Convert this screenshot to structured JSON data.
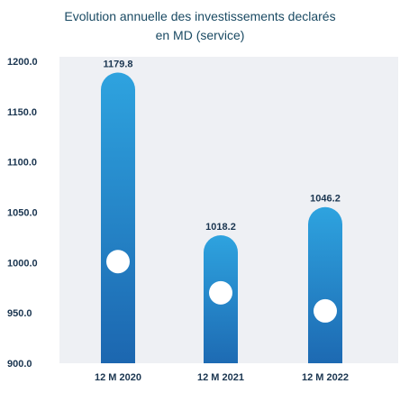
{
  "chart_data": {
    "type": "bar",
    "title_line1": "Evolution annuelle des investissements declarés",
    "title_line2": "en MD (service)",
    "categories": [
      "12 M 2020",
      "12 M 2021",
      "12 M 2022"
    ],
    "values": [
      1179.8,
      1018.2,
      1046.2
    ],
    "data_labels": [
      "1179.8",
      "1018.2",
      "1046.2"
    ],
    "yticks": [
      "1200.0",
      "1150.0",
      "1100.0",
      "1050.0",
      "1000.0",
      "950.0",
      "900.0"
    ],
    "ytick_values": [
      1200,
      1150,
      1100,
      1050,
      1000,
      950,
      900
    ],
    "ylim": [
      900,
      1200
    ],
    "xlabel": "",
    "ylabel": "",
    "grid": false,
    "legend": "none",
    "colors": {
      "plot_background": "#eef0f4",
      "bar_top": "#2ea3df",
      "bar_bottom": "#1b63ad",
      "marker": "#ffffff",
      "text": "#1a3550",
      "title": "#1a4a63"
    }
  }
}
